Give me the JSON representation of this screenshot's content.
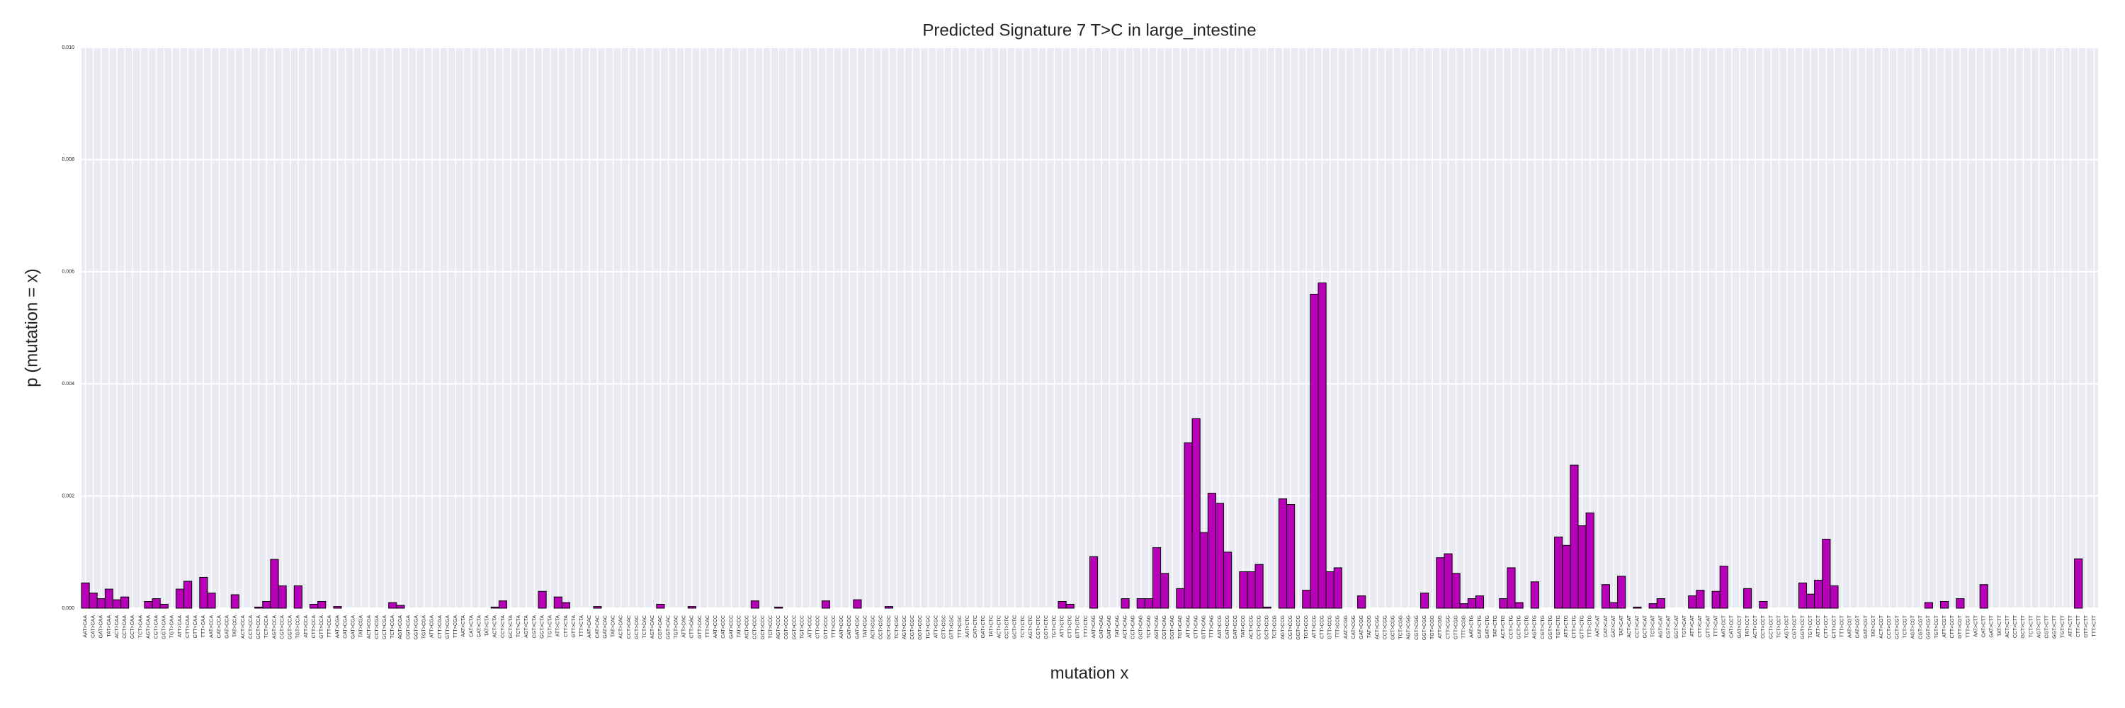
{
  "chart_data": {
    "type": "bar",
    "title": "Predicted Signature 7 T>C in large_intestine",
    "xlabel": "mutation x",
    "ylabel": "p (mutation = x)",
    "color": "#b800b8",
    "grid": true,
    "ylim": [
      0,
      0.01
    ],
    "yticks": [
      {
        "value": 0,
        "label": "0.000"
      },
      {
        "value": 0.002,
        "label": "0.002"
      },
      {
        "value": 0.004,
        "label": "0.004"
      },
      {
        "value": 0.006,
        "label": "0.006"
      },
      {
        "value": 0.008,
        "label": "0.008"
      },
      {
        "value": 0.01,
        "label": "0.010"
      }
    ],
    "categories": [
      "AAT>CAA",
      "CAT>CAA",
      "GAT>CAA",
      "TAT>CAA",
      "ACT>CAA",
      "CCT>CAA",
      "GCT>CAA",
      "TCT>CAA",
      "AGT>CAA",
      "CGT>CAA",
      "GGT>CAA",
      "TGT>CAA",
      "ATT>CAA",
      "CTT>CAA",
      "GTT>CAA",
      "TTT>CAA",
      "AAT>CCA",
      "CAT>CCA",
      "GAT>CCA",
      "TAT>CCA",
      "ACT>CCA",
      "CCT>CCA",
      "GCT>CCA",
      "TCT>CCA",
      "AGT>CCA",
      "CGT>CCA",
      "GGT>CCA",
      "TGT>CCA",
      "ATT>CCA",
      "CTT>CCA",
      "GTT>CCA",
      "TTT>CCA",
      "AAT>CGA",
      "CAT>CGA",
      "GAT>CGA",
      "TAT>CGA",
      "ACT>CGA",
      "CCT>CGA",
      "GCT>CGA",
      "TCT>CGA",
      "AGT>CGA",
      "CGT>CGA",
      "GGT>CGA",
      "TGT>CGA",
      "ATT>CGA",
      "CTT>CGA",
      "GTT>CGA",
      "TTT>CGA",
      "AAT>CTA",
      "CAT>CTA",
      "GAT>CTA",
      "TAT>CTA",
      "ACT>CTA",
      "CCT>CTA",
      "GCT>CTA",
      "TCT>CTA",
      "AGT>CTA",
      "CGT>CTA",
      "GGT>CTA",
      "TGT>CTA",
      "ATT>CTA",
      "CTT>CTA",
      "GTT>CTA",
      "TTT>CTA",
      "AAT>CAC",
      "CAT>CAC",
      "GAT>CAC",
      "TAT>CAC",
      "ACT>CAC",
      "CCT>CAC",
      "GCT>CAC",
      "TCT>CAC",
      "AGT>CAC",
      "CGT>CAC",
      "GGT>CAC",
      "TGT>CAC",
      "ATT>CAC",
      "CTT>CAC",
      "GTT>CAC",
      "TTT>CAC",
      "AAT>CCC",
      "CAT>CCC",
      "GAT>CCC",
      "TAT>CCC",
      "ACT>CCC",
      "CCT>CCC",
      "GCT>CCC",
      "TCT>CCC",
      "AGT>CCC",
      "CGT>CCC",
      "GGT>CCC",
      "TGT>CCC",
      "ATT>CCC",
      "CTT>CCC",
      "GTT>CCC",
      "TTT>CCC",
      "AAT>CGC",
      "CAT>CGC",
      "GAT>CGC",
      "TAT>CGC",
      "ACT>CGC",
      "CCT>CGC",
      "GCT>CGC",
      "TCT>CGC",
      "AGT>CGC",
      "CGT>CGC",
      "GGT>CGC",
      "TGT>CGC",
      "ATT>CGC",
      "CTT>CGC",
      "GTT>CGC",
      "TTT>CGC",
      "AAT>CTC",
      "CAT>CTC",
      "GAT>CTC",
      "TAT>CTC",
      "ACT>CTC",
      "CCT>CTC",
      "GCT>CTC",
      "TCT>CTC",
      "AGT>CTC",
      "CGT>CTC",
      "GGT>CTC",
      "TGT>CTC",
      "ATT>CTC",
      "CTT>CTC",
      "GTT>CTC",
      "TTT>CTC",
      "AAT>CAG",
      "CAT>CAG",
      "GAT>CAG",
      "TAT>CAG",
      "ACT>CAG",
      "CCT>CAG",
      "GCT>CAG",
      "TCT>CAG",
      "AGT>CAG",
      "CGT>CAG",
      "GGT>CAG",
      "TGT>CAG",
      "ATT>CAG",
      "CTT>CAG",
      "GTT>CAG",
      "TTT>CAG",
      "AAT>CCG",
      "CAT>CCG",
      "GAT>CCG",
      "TAT>CCG",
      "ACT>CCG",
      "CCT>CCG",
      "GCT>CCG",
      "TCT>CCG",
      "AGT>CCG",
      "CGT>CCG",
      "GGT>CCG",
      "TGT>CCG",
      "ATT>CCG",
      "CTT>CCG",
      "GTT>CCG",
      "TTT>CCG",
      "AAT>CGG",
      "CAT>CGG",
      "GAT>CGG",
      "TAT>CGG",
      "ACT>CGG",
      "CCT>CGG",
      "GCT>CGG",
      "TCT>CGG",
      "AGT>CGG",
      "CGT>CGG",
      "GGT>CGG",
      "TGT>CGG",
      "ATT>CGG",
      "CTT>CGG",
      "GTT>CGG",
      "TTT>CGG",
      "AAT>CTG",
      "CAT>CTG",
      "GAT>CTG",
      "TAT>CTG",
      "ACT>CTG",
      "CCT>CTG",
      "GCT>CTG",
      "TCT>CTG",
      "AGT>CTG",
      "CGT>CTG",
      "GGT>CTG",
      "TGT>CTG",
      "ATT>CTG",
      "CTT>CTG",
      "GTT>CTG",
      "TTT>CTG",
      "AAT>CAT",
      "CAT>CAT",
      "GAT>CAT",
      "TAT>CAT",
      "ACT>CAT",
      "CCT>CAT",
      "GCT>CAT",
      "TCT>CAT",
      "AGT>CAT",
      "CGT>CAT",
      "GGT>CAT",
      "TGT>CAT",
      "ATT>CAT",
      "CTT>CAT",
      "GTT>CAT",
      "TTT>CAT",
      "AAT>CCT",
      "CAT>CCT",
      "GAT>CCT",
      "TAT>CCT",
      "ACT>CCT",
      "CCT>CCT",
      "GCT>CCT",
      "TCT>CCT",
      "AGT>CCT",
      "CGT>CCT",
      "GGT>CCT",
      "TGT>CCT",
      "ATT>CCT",
      "CTT>CCT",
      "GTT>CCT",
      "TTT>CCT",
      "AAT>CGT",
      "CAT>CGT",
      "GAT>CGT",
      "TAT>CGT",
      "ACT>CGT",
      "CCT>CGT",
      "GCT>CGT",
      "TCT>CGT",
      "AGT>CGT",
      "CGT>CGT",
      "GGT>CGT",
      "TGT>CGT",
      "ATT>CGT",
      "CTT>CGT",
      "GTT>CGT",
      "TTT>CGT",
      "AAT>CTT",
      "CAT>CTT",
      "GAT>CTT",
      "TAT>CTT",
      "ACT>CTT",
      "CCT>CTT",
      "GCT>CTT",
      "TCT>CTT",
      "AGT>CTT",
      "CGT>CTT",
      "GGT>CTT",
      "TGT>CTT",
      "ATT>CTT",
      "CTT>CTT",
      "GTT>CTT",
      "TTT>CTT"
    ],
    "values": [
      0.00045,
      0.00027,
      0.00017,
      0.00034,
      0.00015,
      0.0002,
      0,
      0,
      0.00012,
      0.00017,
      7e-05,
      0,
      0.00034,
      0.00048,
      0,
      0.00055,
      0.00027,
      0,
      0,
      0.00024,
      0,
      0,
      2e-05,
      0.00012,
      0.00087,
      0.0004,
      0,
      0.0004,
      0,
      7e-05,
      0.00012,
      0,
      3e-05,
      0,
      0,
      0,
      0,
      0,
      0,
      0.0001,
      5e-05,
      0,
      0,
      0,
      0,
      0,
      0,
      0,
      0,
      0,
      0,
      0,
      2e-05,
      0.00013,
      0,
      0,
      0,
      0,
      0.0003,
      0,
      0.0002,
      0.0001,
      0,
      0,
      0,
      3e-05,
      0,
      0,
      0,
      0,
      0,
      0,
      0,
      7e-05,
      0,
      0,
      0,
      3e-05,
      0,
      0,
      0,
      0,
      0,
      0,
      0,
      0.00013,
      0,
      0,
      2e-05,
      0,
      0,
      0,
      0,
      0,
      0.00013,
      0,
      0,
      0,
      0.00015,
      0,
      0,
      0,
      3e-05,
      0,
      0,
      0,
      0,
      0,
      0,
      0,
      0,
      0,
      0,
      0,
      0,
      0,
      0,
      0,
      0,
      0,
      0,
      0,
      0,
      0,
      0.00012,
      7e-05,
      0,
      0,
      0.00092,
      0,
      0,
      0,
      0.00017,
      0,
      0.00017,
      0.00017,
      0.00108,
      0.00062,
      0,
      0.00035,
      0.00295,
      0.00338,
      0.00135,
      0.00205,
      0.00187,
      0.001,
      0,
      0.00065,
      0.00065,
      0.00078,
      2e-05,
      0,
      0.00195,
      0.00185,
      0,
      0.00032,
      0.0056,
      0.0058,
      0.00065,
      0.00072,
      0,
      0,
      0.00022,
      0,
      0,
      0,
      0,
      0,
      0,
      0,
      0.00027,
      0,
      0.0009,
      0.00097,
      0.00062,
      8e-05,
      0.00017,
      0.00022,
      0,
      0,
      0.00017,
      0.00072,
      0.0001,
      0,
      0.00047,
      0,
      0,
      0.00127,
      0.00112,
      0.00255,
      0.00147,
      0.0017,
      0,
      0.00042,
      0.0001,
      0.00057,
      0,
      2e-05,
      0,
      8e-05,
      0.00017,
      0,
      0,
      0,
      0.00022,
      0.00032,
      0,
      0.0003,
      0.00075,
      0,
      0,
      0.00035,
      0,
      0.00012,
      0,
      0,
      0,
      0,
      0.00045,
      0.00025,
      0.0005,
      0.00123,
      0.0004,
      0,
      0,
      0,
      0,
      0,
      0,
      0,
      0,
      0,
      0,
      0,
      0.0001,
      0,
      0.00012,
      0,
      0.00017,
      0,
      0,
      0.00042,
      0,
      0,
      0,
      0,
      0,
      0,
      0,
      0,
      0,
      0,
      0,
      0.00088,
      0,
      0
    ]
  }
}
